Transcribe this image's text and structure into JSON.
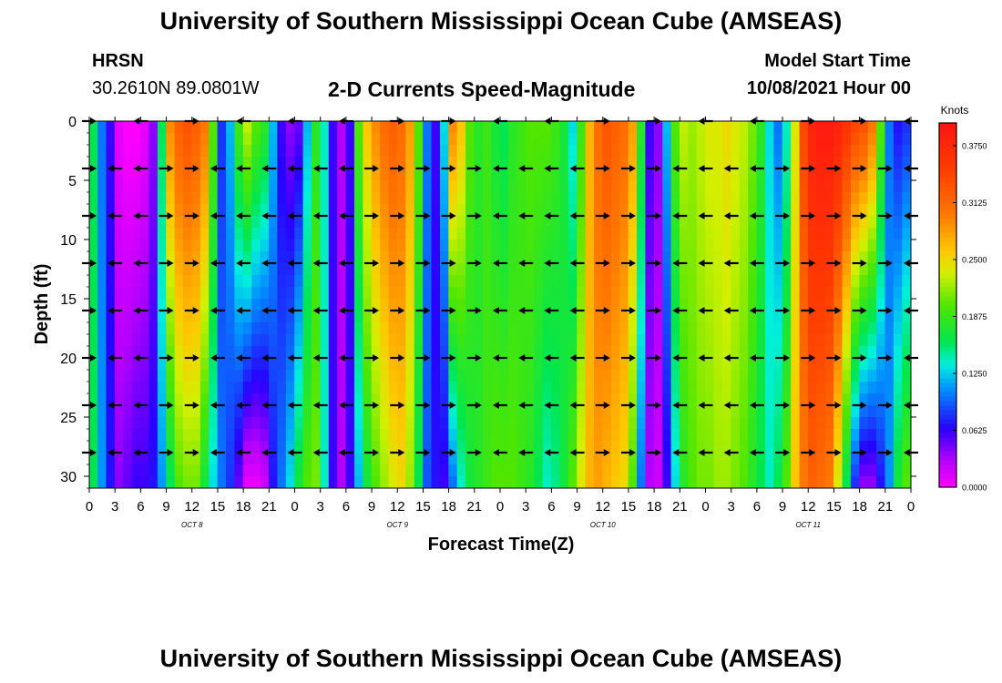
{
  "header": {
    "title": "University of Southern Mississippi Ocean Cube (AMSEAS)",
    "footer_title": "University of Southern Mississippi Ocean Cube (AMSEAS)",
    "station": "HRSN",
    "coords": "30.2610N  89.0801W",
    "product": "2-D Currents Speed-Magnitude",
    "model_label": "Model Start Time",
    "model_start": "10/08/2021 Hour 00"
  },
  "chart_data": {
    "type": "heatmap",
    "title": "2-D Currents Speed-Magnitude",
    "xlabel": "Forecast Time(Z)",
    "ylabel": "Depth (ft)",
    "colorbar_label": "Knots",
    "x_range_hours": [
      0,
      96
    ],
    "ylim": [
      31,
      0
    ],
    "y_ticks": [
      0,
      5,
      10,
      15,
      20,
      25,
      30
    ],
    "x_tick_labels": [
      "0",
      "3",
      "6",
      "9",
      "12",
      "15",
      "18",
      "21",
      "0",
      "3",
      "6",
      "9",
      "12",
      "15",
      "18",
      "21",
      "0",
      "3",
      "6",
      "9",
      "12",
      "15",
      "18",
      "21",
      "0",
      "3",
      "6",
      "9",
      "12",
      "15",
      "18",
      "21",
      "0"
    ],
    "day_labels": [
      {
        "label": "OCT 8",
        "hour": 12
      },
      {
        "label": "OCT 9",
        "hour": 36
      },
      {
        "label": "OCT 10",
        "hour": 60
      },
      {
        "label": "OCT 11",
        "hour": 84
      }
    ],
    "colorbar": {
      "min": 0,
      "max": 0.4,
      "tick_labels": [
        "0.0000",
        "0.0625",
        "0.1250",
        "0.1875",
        "0.2500",
        "0.3125",
        "0.3750"
      ],
      "tick_values": [
        0,
        0.0625,
        0.125,
        0.1875,
        0.25,
        0.3125,
        0.375
      ]
    },
    "speed_profile": {
      "hours": [
        0,
        1,
        2,
        3,
        4,
        5,
        6,
        7,
        8,
        9,
        10,
        11,
        12,
        13,
        14,
        15,
        16,
        17,
        18,
        19,
        20,
        21,
        22,
        23,
        24,
        25,
        26,
        27,
        28,
        29,
        30,
        31,
        32,
        33,
        34,
        35,
        36,
        37,
        38,
        39,
        40,
        41,
        42,
        43,
        44,
        45,
        46,
        47,
        48,
        49,
        50,
        51,
        52,
        53,
        54,
        55,
        56,
        57,
        58,
        59,
        60,
        61,
        62,
        63,
        64,
        65,
        66,
        67,
        68,
        69,
        70,
        71,
        72,
        73,
        74,
        75,
        76,
        77,
        78,
        79,
        80,
        81,
        82,
        83,
        84,
        85,
        86,
        87,
        88,
        89,
        90,
        91,
        92,
        93,
        94,
        95,
        96
      ],
      "surface_knots": [
        0.16,
        0.1,
        0.06,
        0.01,
        0.0,
        0.0,
        0.01,
        0.04,
        0.16,
        0.29,
        0.32,
        0.33,
        0.32,
        0.3,
        0.2,
        0.08,
        0.12,
        0.19,
        0.23,
        0.2,
        0.18,
        0.12,
        0.06,
        0.04,
        0.05,
        0.12,
        0.18,
        0.14,
        0.06,
        0.03,
        0.06,
        0.2,
        0.26,
        0.29,
        0.31,
        0.32,
        0.31,
        0.28,
        0.2,
        0.1,
        0.06,
        0.13,
        0.29,
        0.26,
        0.2,
        0.18,
        0.19,
        0.17,
        0.16,
        0.18,
        0.19,
        0.2,
        0.2,
        0.2,
        0.19,
        0.17,
        0.13,
        0.19,
        0.27,
        0.31,
        0.33,
        0.32,
        0.31,
        0.28,
        0.18,
        0.06,
        0.04,
        0.12,
        0.2,
        0.23,
        0.22,
        0.23,
        0.24,
        0.24,
        0.25,
        0.24,
        0.23,
        0.21,
        0.18,
        0.13,
        0.1,
        0.14,
        0.24,
        0.34,
        0.38,
        0.39,
        0.39,
        0.38,
        0.36,
        0.34,
        0.33,
        0.3,
        0.2,
        0.1,
        0.07,
        0.08,
        0.1
      ],
      "bottom_knots": [
        0.16,
        0.11,
        0.07,
        0.04,
        0.05,
        0.06,
        0.06,
        0.07,
        0.11,
        0.16,
        0.2,
        0.21,
        0.21,
        0.17,
        0.13,
        0.1,
        0.08,
        0.05,
        0.01,
        0.01,
        0.02,
        0.07,
        0.1,
        0.13,
        0.17,
        0.2,
        0.21,
        0.14,
        0.06,
        0.03,
        0.06,
        0.12,
        0.17,
        0.2,
        0.22,
        0.24,
        0.25,
        0.22,
        0.16,
        0.09,
        0.07,
        0.06,
        0.1,
        0.14,
        0.17,
        0.18,
        0.19,
        0.2,
        0.2,
        0.2,
        0.19,
        0.18,
        0.16,
        0.14,
        0.15,
        0.17,
        0.2,
        0.24,
        0.27,
        0.28,
        0.27,
        0.26,
        0.25,
        0.2,
        0.1,
        0.03,
        0.02,
        0.06,
        0.13,
        0.18,
        0.2,
        0.21,
        0.21,
        0.22,
        0.22,
        0.21,
        0.2,
        0.18,
        0.16,
        0.14,
        0.16,
        0.2,
        0.26,
        0.3,
        0.32,
        0.31,
        0.3,
        0.24,
        0.16,
        0.08,
        0.04,
        0.04,
        0.07,
        0.11,
        0.17,
        0.2,
        0.22
      ]
    },
    "vectors": {
      "depths_ft": [
        0,
        4,
        8,
        12,
        16,
        20,
        24,
        28
      ],
      "hours": [
        0,
        3,
        6,
        9,
        12,
        15,
        18,
        21,
        24,
        27,
        30,
        33,
        36,
        39,
        42,
        45,
        48,
        51,
        54,
        57,
        60,
        63,
        66,
        69,
        72,
        75,
        78,
        81,
        84,
        87,
        90,
        93,
        96
      ],
      "direction": [
        "E",
        "W",
        "W",
        "E",
        "E",
        "W",
        "W",
        "W",
        "W",
        "W",
        "W",
        "E",
        "E",
        "E",
        "E",
        "E",
        "W",
        "W",
        "W",
        "W",
        "E",
        "E",
        "E",
        "W",
        "W",
        "W",
        "W",
        "E",
        "E",
        "E",
        "E",
        "E",
        "W"
      ]
    }
  }
}
